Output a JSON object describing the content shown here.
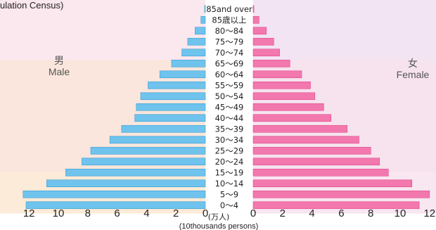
{
  "page": {
    "top_fragment": "ulation Census)"
  },
  "labels": {
    "male_jp": "男",
    "male_en": "Male",
    "female_jp": "女",
    "female_en": "Female",
    "unit_jp": "(万人)",
    "unit_en": "(10thousands persons)"
  },
  "colors": {
    "male_bar": "#6fc3ec",
    "male_bar_dark": "#3b9fd6",
    "female_bar": "#f278ae",
    "female_bar_dark": "#e2488c",
    "bg_left_top": "#fbe7ee",
    "bg_left_mid": "#fae6dd",
    "bg_left_bottom": "#fcebd8",
    "bg_right_top": "#f2e4f3",
    "bg_right_mid": "#f6e3ee",
    "bg_right_bottom": "#f8e6f0"
  },
  "chart_data": {
    "type": "bar",
    "subtype": "population-pyramid",
    "orientation": "horizontal",
    "categories": [
      "85and over",
      "85歳以上",
      "80〜84",
      "75〜79",
      "70〜74",
      "65〜69",
      "60〜64",
      "55〜59",
      "50〜54",
      "45〜49",
      "40〜44",
      "35〜39",
      "30〜34",
      "25〜29",
      "20〜24",
      "15〜19",
      "10〜14",
      "5〜9",
      "0〜4"
    ],
    "series": [
      {
        "name": "Male",
        "values": [
          0.05,
          0.3,
          0.7,
          1.2,
          1.6,
          2.3,
          3.1,
          3.9,
          4.4,
          4.7,
          4.8,
          5.7,
          6.5,
          7.8,
          8.4,
          9.5,
          10.8,
          12.4,
          12.2
        ]
      },
      {
        "name": "Female",
        "values": [
          0.05,
          0.4,
          0.9,
          1.4,
          1.8,
          2.5,
          3.3,
          3.9,
          4.2,
          4.8,
          5.3,
          6.4,
          7.2,
          8.0,
          8.6,
          9.2,
          10.8,
          12.0,
          11.3
        ]
      }
    ],
    "xticks_left": [
      "12",
      "10",
      "8",
      "6",
      "4",
      "2",
      "0"
    ],
    "xticks_right": [
      "0",
      "2",
      "4",
      "6",
      "8",
      "10",
      "12"
    ],
    "xlim": [
      0,
      13
    ],
    "grid": false,
    "legend": "none"
  }
}
